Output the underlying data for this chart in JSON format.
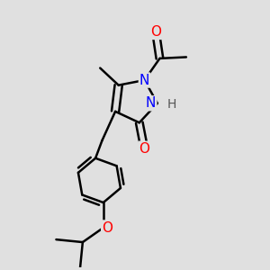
{
  "bg_color": "#e0e0e0",
  "bond_color": "#000000",
  "bond_width": 1.8,
  "atom_colors": {
    "O": "#ff0000",
    "N": "#0000ff",
    "C": "#000000",
    "H": "#555555"
  },
  "font_size_atom": 11,
  "font_size_h": 10,
  "fig_size": [
    3.0,
    3.0
  ],
  "dpi": 100
}
